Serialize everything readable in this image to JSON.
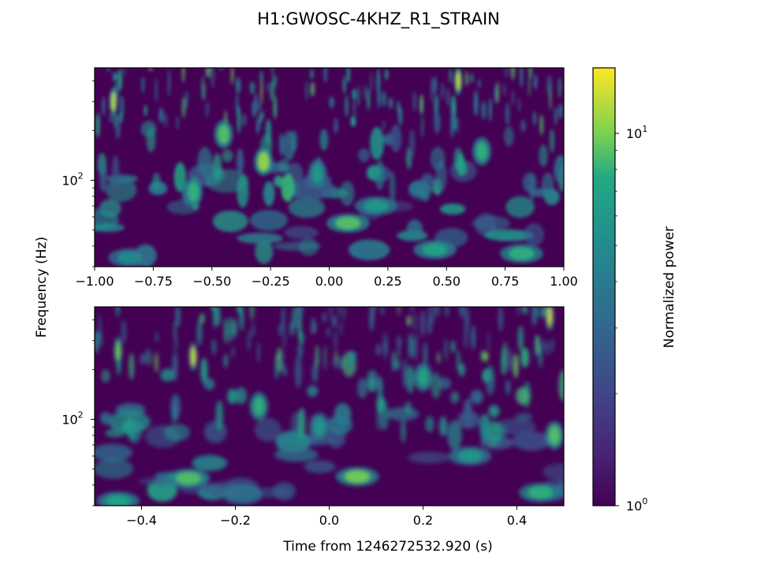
{
  "chart_data": {
    "type": "heatmap",
    "title": "H1:GWOSC-4KHZ_R1_STRAIN",
    "ylabel": "Frequency (Hz)",
    "xlabel": "Time from 1246272532.920 (s)",
    "colorbar": {
      "label": "Normalized power",
      "scale": "log",
      "range": [
        1,
        15
      ],
      "tick_labels": [
        "10^0",
        "10^1"
      ],
      "colormap": "viridis",
      "colors": [
        "#440154",
        "#3b528b",
        "#21918c",
        "#5ec962",
        "#fde725"
      ]
    },
    "panels": [
      {
        "name": "top",
        "xlim": [
          -1.0,
          1.0
        ],
        "x_ticks": [
          "−1.00",
          "−0.75",
          "−0.50",
          "−0.25",
          "0.00",
          "0.25",
          "0.50",
          "0.75",
          "1.00"
        ],
        "x_tick_values": [
          -1.0,
          -0.75,
          -0.5,
          -0.25,
          0.0,
          0.25,
          0.5,
          0.75,
          1.0
        ],
        "yscale": "log",
        "ylim": [
          30,
          480
        ],
        "y_tick_label": "10^2",
        "hotspots": [
          {
            "x": -0.92,
            "y": 300,
            "power": 12
          },
          {
            "x": -0.45,
            "y": 190,
            "power": 9
          },
          {
            "x": -0.28,
            "y": 130,
            "power": 11
          },
          {
            "x": -0.58,
            "y": 85,
            "power": 8
          },
          {
            "x": 0.08,
            "y": 55,
            "power": 9
          },
          {
            "x": -0.85,
            "y": 34,
            "power": 5
          },
          {
            "x": 0.45,
            "y": 38,
            "power": 7
          },
          {
            "x": 0.82,
            "y": 36,
            "power": 8
          },
          {
            "x": 0.55,
            "y": 400,
            "power": 12
          },
          {
            "x": -0.05,
            "y": 110,
            "power": 6
          },
          {
            "x": 0.2,
            "y": 70,
            "power": 6
          },
          {
            "x": 0.65,
            "y": 150,
            "power": 8
          }
        ]
      },
      {
        "name": "bottom",
        "xlim": [
          -0.5,
          0.5
        ],
        "x_ticks": [
          "−0.4",
          "−0.2",
          "0.0",
          "0.2",
          "0.4"
        ],
        "x_tick_values": [
          -0.4,
          -0.2,
          0.0,
          0.2,
          0.4
        ],
        "yscale": "log",
        "ylim": [
          30,
          480
        ],
        "y_tick_label": "10^2",
        "hotspots": [
          {
            "x": -0.29,
            "y": 240,
            "power": 13
          },
          {
            "x": -0.45,
            "y": 260,
            "power": 10
          },
          {
            "x": 0.06,
            "y": 45,
            "power": 10
          },
          {
            "x": -0.3,
            "y": 44,
            "power": 9
          },
          {
            "x": -0.15,
            "y": 120,
            "power": 8
          },
          {
            "x": 0.48,
            "y": 80,
            "power": 9
          },
          {
            "x": -0.45,
            "y": 32,
            "power": 7
          },
          {
            "x": 0.45,
            "y": 36,
            "power": 8
          },
          {
            "x": 0.3,
            "y": 60,
            "power": 6
          },
          {
            "x": 0.47,
            "y": 420,
            "power": 13
          },
          {
            "x": -0.02,
            "y": 90,
            "power": 6
          },
          {
            "x": 0.2,
            "y": 180,
            "power": 7
          }
        ]
      }
    ]
  }
}
